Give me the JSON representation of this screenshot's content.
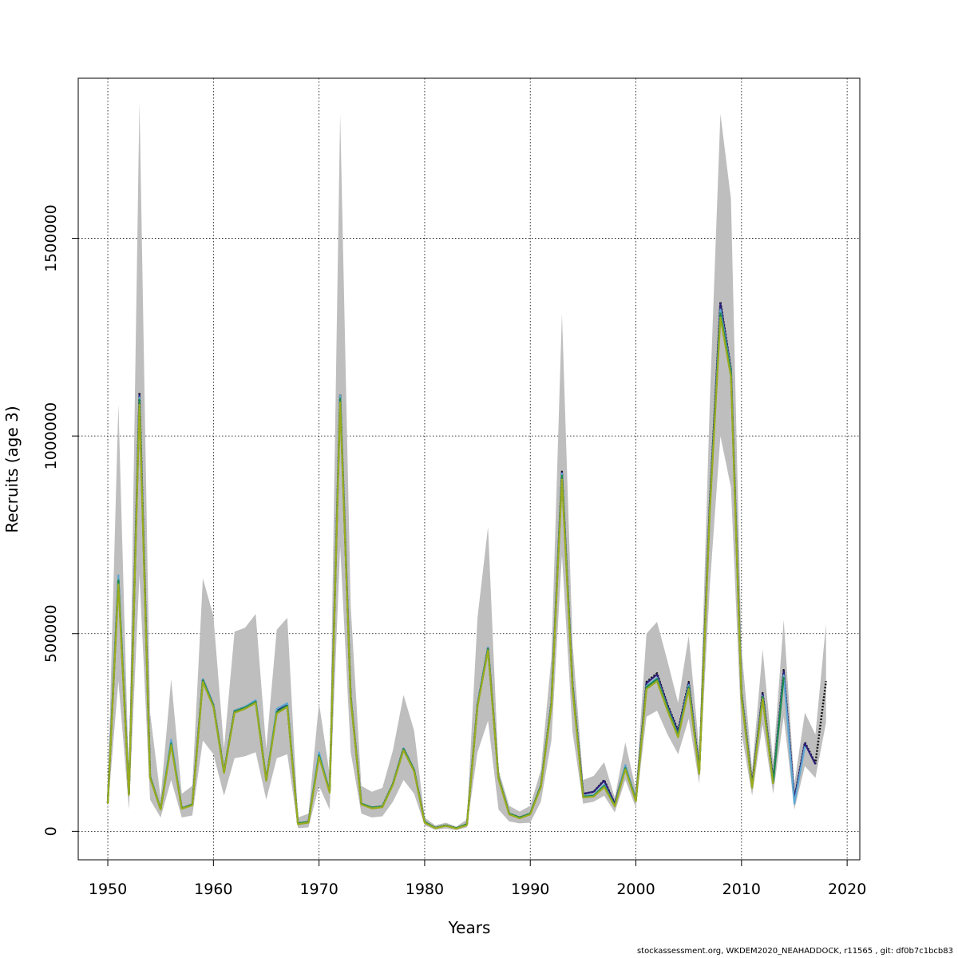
{
  "chart_data": {
    "type": "line",
    "title": "",
    "xlabel": "Years",
    "ylabel": "Recruits (age 3)",
    "xlim": [
      1947.2,
      2021.2
    ],
    "ylim": [
      -72000,
      1905000
    ],
    "x_ticks": [
      1950,
      1960,
      1970,
      1980,
      1990,
      2000,
      2010,
      2020
    ],
    "x_tick_labels": [
      "1950",
      "1960",
      "1970",
      "1980",
      "1990",
      "2000",
      "2010",
      "2020"
    ],
    "y_ticks": [
      0,
      500000,
      1000000,
      1500000
    ],
    "y_tick_labels": [
      "0",
      "500000",
      "1000000",
      "1500000"
    ],
    "grid": true,
    "band": {
      "name": "confidence interval",
      "color": "#bebebe",
      "x": [
        1950,
        1951,
        1952,
        1953,
        1954,
        1955,
        1956,
        1957,
        1958,
        1959,
        1960,
        1961,
        1962,
        1963,
        1964,
        1965,
        1966,
        1967,
        1968,
        1969,
        1970,
        1971,
        1972,
        1973,
        1974,
        1975,
        1976,
        1977,
        1978,
        1979,
        1980,
        1981,
        1982,
        1983,
        1984,
        1985,
        1986,
        1987,
        1988,
        1989,
        1990,
        1991,
        1992,
        1993,
        1994,
        1995,
        1996,
        1997,
        1998,
        1999,
        2000,
        2001,
        2002,
        2003,
        2004,
        2005,
        2006,
        2007,
        2008,
        2009,
        2010,
        2011,
        2012,
        2013,
        2014,
        2015,
        2016,
        2017,
        2018
      ],
      "lower": [
        55000,
        380000,
        55000,
        650000,
        80000,
        35000,
        130000,
        35000,
        40000,
        230000,
        195000,
        90000,
        185000,
        190000,
        200000,
        80000,
        185000,
        195000,
        8000,
        10000,
        115000,
        55000,
        720000,
        200000,
        45000,
        35000,
        38000,
        75000,
        130000,
        95000,
        15000,
        4000,
        7000,
        3000,
        10000,
        200000,
        280000,
        55000,
        25000,
        20000,
        22000,
        75000,
        230000,
        700000,
        250000,
        70000,
        75000,
        90000,
        48000,
        130000,
        60000,
        290000,
        305000,
        245000,
        195000,
        285000,
        120000,
        620000,
        1000000,
        870000,
        250000,
        90000,
        270000,
        95000,
        290000,
        55000,
        165000,
        135000,
        275000
      ],
      "upper": [
        100000,
        1080000,
        130000,
        1845000,
        300000,
        85000,
        385000,
        95000,
        115000,
        640000,
        545000,
        210000,
        505000,
        515000,
        550000,
        210000,
        510000,
        540000,
        35000,
        45000,
        325000,
        145000,
        1815000,
        570000,
        115000,
        100000,
        110000,
        205000,
        345000,
        255000,
        35000,
        15000,
        22000,
        12000,
        30000,
        540000,
        770000,
        155000,
        65000,
        50000,
        65000,
        155000,
        440000,
        1310000,
        475000,
        130000,
        140000,
        175000,
        85000,
        225000,
        105000,
        500000,
        530000,
        430000,
        325000,
        495000,
        205000,
        1085000,
        1815000,
        1600000,
        465000,
        155000,
        460000,
        175000,
        535000,
        120000,
        300000,
        245000,
        525000
      ]
    },
    "series": [
      {
        "name": "black",
        "color": "#111111",
        "x": [
          1950,
          1951,
          1952,
          1953,
          1954,
          1955,
          1956,
          1957,
          1958,
          1959,
          1960,
          1961,
          1962,
          1963,
          1964,
          1965,
          1966,
          1967,
          1968,
          1969,
          1970,
          1971,
          1972,
          1973,
          1974,
          1975,
          1976,
          1977,
          1978,
          1979,
          1980,
          1981,
          1982,
          1983,
          1984,
          1985,
          1986,
          1987,
          1988,
          1989,
          1990,
          1991,
          1992,
          1993,
          1994,
          1995,
          1996,
          1997,
          1998,
          1999,
          2000,
          2001,
          2002,
          2003,
          2004,
          2005,
          2006,
          2007,
          2008,
          2009,
          2010,
          2011,
          2012,
          2013,
          2014,
          2015,
          2016,
          2017,
          2018
        ],
        "values": [
          72000,
          640000,
          95000,
          1110000,
          138000,
          56000,
          225000,
          58000,
          68000,
          385000,
          320000,
          150000,
          305000,
          315000,
          330000,
          130000,
          305000,
          320000,
          20000,
          24000,
          195000,
          100000,
          1105000,
          340000,
          70000,
          60000,
          63000,
          120000,
          210000,
          155000,
          24000,
          9000,
          15000,
          8000,
          18000,
          320000,
          465000,
          135000,
          45000,
          35000,
          45000,
          115000,
          325000,
          910000,
          370000,
          95000,
          100000,
          130000,
          70000,
          165000,
          80000,
          378000,
          400000,
          320000,
          255000,
          378000,
          155000,
          830000,
          1340000,
          1170000,
          350000,
          118000,
          350000,
          130000,
          408000,
          82000,
          225000,
          172000,
          380000
        ]
      },
      {
        "name": "dark-blue",
        "color": "#2a1f7a",
        "x": [
          1950,
          1951,
          1952,
          1953,
          1954,
          1955,
          1956,
          1957,
          1958,
          1959,
          1960,
          1961,
          1962,
          1963,
          1964,
          1965,
          1966,
          1967,
          1968,
          1969,
          1970,
          1971,
          1972,
          1973,
          1974,
          1975,
          1976,
          1977,
          1978,
          1979,
          1980,
          1981,
          1982,
          1983,
          1984,
          1985,
          1986,
          1987,
          1988,
          1989,
          1990,
          1991,
          1992,
          1993,
          1994,
          1995,
          1996,
          1997,
          1998,
          1999,
          2000,
          2001,
          2002,
          2003,
          2004,
          2005,
          2006,
          2007,
          2008,
          2009,
          2010,
          2011,
          2012,
          2013,
          2014,
          2015,
          2016,
          2017
        ],
        "values": [
          72000,
          640000,
          95000,
          1105000,
          138000,
          56000,
          225000,
          58000,
          68000,
          385000,
          320000,
          150000,
          305000,
          315000,
          330000,
          130000,
          305000,
          320000,
          20000,
          24000,
          195000,
          100000,
          1100000,
          340000,
          70000,
          60000,
          63000,
          120000,
          210000,
          155000,
          24000,
          9000,
          15000,
          8000,
          18000,
          320000,
          465000,
          135000,
          45000,
          35000,
          45000,
          115000,
          325000,
          908000,
          370000,
          95000,
          100000,
          128000,
          70000,
          165000,
          80000,
          375000,
          397000,
          318000,
          252000,
          375000,
          155000,
          825000,
          1335000,
          1168000,
          348000,
          117000,
          348000,
          128000,
          405000,
          80000,
          222000,
          170000
        ]
      },
      {
        "name": "light-blue",
        "color": "#5fa8d3",
        "x": [
          1950,
          1951,
          1952,
          1953,
          1954,
          1955,
          1956,
          1957,
          1958,
          1959,
          1960,
          1961,
          1962,
          1963,
          1964,
          1965,
          1966,
          1967,
          1968,
          1969,
          1970,
          1971,
          1972,
          1973,
          1974,
          1975,
          1976,
          1977,
          1978,
          1979,
          1980,
          1981,
          1982,
          1983,
          1984,
          1985,
          1986,
          1987,
          1988,
          1989,
          1990,
          1991,
          1992,
          1993,
          1994,
          1995,
          1996,
          1997,
          1998,
          1999,
          2000,
          2001,
          2002,
          2003,
          2004,
          2005,
          2006,
          2007,
          2008,
          2009,
          2010,
          2011,
          2012,
          2013,
          2014,
          2015,
          2016
        ],
        "values": [
          72000,
          648000,
          95000,
          1098000,
          138000,
          56000,
          232000,
          58000,
          68000,
          385000,
          320000,
          150000,
          305000,
          315000,
          332000,
          130000,
          310000,
          324000,
          20000,
          24000,
          200000,
          100000,
          1102000,
          340000,
          70000,
          60000,
          63000,
          120000,
          210000,
          155000,
          24000,
          9000,
          15000,
          8000,
          18000,
          320000,
          465000,
          135000,
          45000,
          35000,
          45000,
          115000,
          325000,
          905000,
          368000,
          90000,
          92000,
          118000,
          65000,
          168000,
          78000,
          368000,
          388000,
          312000,
          244000,
          370000,
          150000,
          818000,
          1320000,
          1165000,
          345000,
          112000,
          342000,
          125000,
          395000,
          70000,
          215000
        ]
      },
      {
        "name": "green",
        "color": "#1e8a4a",
        "x": [
          1950,
          1951,
          1952,
          1953,
          1954,
          1955,
          1956,
          1957,
          1958,
          1959,
          1960,
          1961,
          1962,
          1963,
          1964,
          1965,
          1966,
          1967,
          1968,
          1969,
          1970,
          1971,
          1972,
          1973,
          1974,
          1975,
          1976,
          1977,
          1978,
          1979,
          1980,
          1981,
          1982,
          1983,
          1984,
          1985,
          1986,
          1987,
          1988,
          1989,
          1990,
          1991,
          1992,
          1993,
          1994,
          1995,
          1996,
          1997,
          1998,
          1999,
          2000,
          2001,
          2002,
          2003,
          2004,
          2005,
          2006,
          2007,
          2008,
          2009,
          2010,
          2011,
          2012,
          2013,
          2014
        ],
        "values": [
          72000,
          635000,
          95000,
          1092000,
          138000,
          56000,
          222000,
          58000,
          68000,
          382000,
          318000,
          150000,
          303000,
          313000,
          328000,
          130000,
          302000,
          318000,
          20000,
          24000,
          192000,
          100000,
          1095000,
          338000,
          70000,
          60000,
          63000,
          120000,
          208000,
          155000,
          24000,
          9000,
          15000,
          8000,
          18000,
          318000,
          462000,
          135000,
          45000,
          35000,
          45000,
          115000,
          322000,
          900000,
          365000,
          88000,
          90000,
          115000,
          65000,
          160000,
          78000,
          365000,
          385000,
          310000,
          242000,
          365000,
          148000,
          815000,
          1310000,
          1160000,
          342000,
          112000,
          340000,
          123000,
          390000
        ]
      },
      {
        "name": "olive",
        "color": "#9aab1e",
        "x": [
          1950,
          1951,
          1952,
          1953,
          1954,
          1955,
          1956,
          1957,
          1958,
          1959,
          1960,
          1961,
          1962,
          1963,
          1964,
          1965,
          1966,
          1967,
          1968,
          1969,
          1970,
          1971,
          1972,
          1973,
          1974,
          1975,
          1976,
          1977,
          1978,
          1979,
          1980,
          1981,
          1982,
          1983,
          1984,
          1985,
          1986,
          1987,
          1988,
          1989,
          1990,
          1991,
          1992,
          1993,
          1994,
          1995,
          1996,
          1997,
          1998,
          1999,
          2000,
          2001,
          2002,
          2003,
          2004,
          2005,
          2006,
          2007,
          2008,
          2009,
          2010,
          2011,
          2012,
          2013
        ],
        "values": [
          70000,
          625000,
          92000,
          1080000,
          135000,
          55000,
          218000,
          57000,
          66000,
          378000,
          315000,
          148000,
          300000,
          310000,
          325000,
          128000,
          298000,
          315000,
          18000,
          22000,
          188000,
          98000,
          1085000,
          335000,
          68000,
          58000,
          61000,
          118000,
          205000,
          152000,
          22000,
          8000,
          14000,
          7000,
          16000,
          315000,
          458000,
          132000,
          43000,
          33000,
          43000,
          112000,
          318000,
          890000,
          360000,
          86000,
          88000,
          112000,
          63000,
          157000,
          76000,
          360000,
          380000,
          305000,
          238000,
          360000,
          145000,
          808000,
          1300000,
          1150000,
          338000,
          110000,
          335000,
          120000
        ]
      }
    ]
  },
  "footer": "stockassessment.org, WKDEM2020_NEAHADDOCK, r11565 , git: df0b7c1bcb83"
}
